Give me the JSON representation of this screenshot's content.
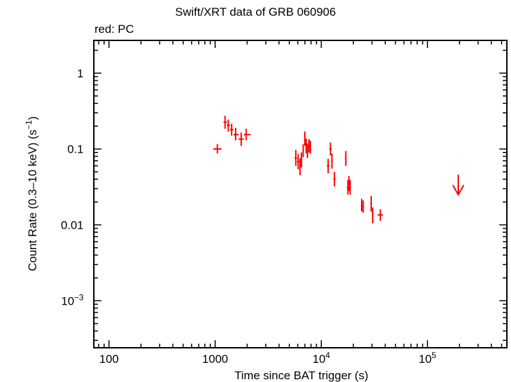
{
  "chart_data": {
    "type": "scatter",
    "title": "Swift/XRT data of GRB 060906",
    "subtitle": "red: PC",
    "xlabel": "Time since BAT trigger (s)",
    "ylabel": "Count Rate (0.3–10 keV) (s",
    "ylabel_sup": "−1",
    "ylabel_end": ")",
    "x_scale": "log",
    "y_scale": "log",
    "xlim": [
      72,
      560000
    ],
    "ylim": [
      0.00024,
      2.7
    ],
    "x_ticks": [
      {
        "value": 100,
        "base": "100",
        "sup": ""
      },
      {
        "value": 1000,
        "base": "1000",
        "sup": ""
      },
      {
        "value": 10000,
        "base": "10",
        "sup": "4"
      },
      {
        "value": 100000,
        "base": "10",
        "sup": "5"
      }
    ],
    "y_ticks": [
      {
        "value": 1,
        "base": "1",
        "sup": ""
      },
      {
        "value": 0.1,
        "base": "0.1",
        "sup": ""
      },
      {
        "value": 0.01,
        "base": "0.01",
        "sup": ""
      },
      {
        "value": 0.001,
        "base": "10",
        "sup": "−3"
      }
    ],
    "color": "#ff0000",
    "series": [
      {
        "points": [
          {
            "x": 1050,
            "y": 0.1,
            "xlo": 960,
            "xhi": 1150,
            "ylo": 0.087,
            "yhi": 0.116
          },
          {
            "x": 1240,
            "y": 0.225,
            "xlo": 1200,
            "xhi": 1290,
            "ylo": 0.185,
            "yhi": 0.275
          },
          {
            "x": 1330,
            "y": 0.205,
            "xlo": 1290,
            "xhi": 1380,
            "ylo": 0.17,
            "yhi": 0.245
          },
          {
            "x": 1430,
            "y": 0.18,
            "xlo": 1380,
            "xhi": 1490,
            "ylo": 0.15,
            "yhi": 0.215
          },
          {
            "x": 1560,
            "y": 0.155,
            "xlo": 1490,
            "xhi": 1660,
            "ylo": 0.13,
            "yhi": 0.19
          },
          {
            "x": 1760,
            "y": 0.135,
            "xlo": 1660,
            "xhi": 1860,
            "ylo": 0.11,
            "yhi": 0.165
          },
          {
            "x": 1960,
            "y": 0.155,
            "xlo": 1860,
            "xhi": 2160,
            "ylo": 0.13,
            "yhi": 0.185
          },
          {
            "x": 5750,
            "y": 0.076,
            "xlo": 5600,
            "xhi": 5900,
            "ylo": 0.06,
            "yhi": 0.097
          },
          {
            "x": 6050,
            "y": 0.068,
            "xlo": 5900,
            "xhi": 6200,
            "ylo": 0.054,
            "yhi": 0.086
          },
          {
            "x": 6300,
            "y": 0.058,
            "xlo": 6200,
            "xhi": 6400,
            "ylo": 0.045,
            "yhi": 0.075
          },
          {
            "x": 6500,
            "y": 0.072,
            "xlo": 6400,
            "xhi": 6600,
            "ylo": 0.057,
            "yhi": 0.09
          },
          {
            "x": 6750,
            "y": 0.095,
            "xlo": 6650,
            "xhi": 6850,
            "ylo": 0.078,
            "yhi": 0.116
          },
          {
            "x": 7000,
            "y": 0.135,
            "xlo": 6900,
            "xhi": 7100,
            "ylo": 0.11,
            "yhi": 0.17
          },
          {
            "x": 7200,
            "y": 0.11,
            "xlo": 7100,
            "xhi": 7300,
            "ylo": 0.088,
            "yhi": 0.137
          },
          {
            "x": 7400,
            "y": 0.095,
            "xlo": 7300,
            "xhi": 7500,
            "ylo": 0.076,
            "yhi": 0.118
          },
          {
            "x": 7650,
            "y": 0.11,
            "xlo": 7500,
            "xhi": 7800,
            "ylo": 0.09,
            "yhi": 0.135
          },
          {
            "x": 7900,
            "y": 0.105,
            "xlo": 7800,
            "xhi": 8000,
            "ylo": 0.087,
            "yhi": 0.128
          },
          {
            "x": 11600,
            "y": 0.06,
            "xlo": 11300,
            "xhi": 11900,
            "ylo": 0.048,
            "yhi": 0.074
          },
          {
            "x": 12200,
            "y": 0.1,
            "xlo": 11900,
            "xhi": 12500,
            "ylo": 0.082,
            "yhi": 0.122
          },
          {
            "x": 12600,
            "y": 0.07,
            "xlo": 12400,
            "xhi": 12800,
            "ylo": 0.055,
            "yhi": 0.087
          },
          {
            "x": 13300,
            "y": 0.04,
            "xlo": 13000,
            "xhi": 13600,
            "ylo": 0.032,
            "yhi": 0.05
          },
          {
            "x": 17000,
            "y": 0.075,
            "xlo": 16700,
            "xhi": 17300,
            "ylo": 0.06,
            "yhi": 0.094
          },
          {
            "x": 17800,
            "y": 0.031,
            "xlo": 17400,
            "xhi": 18200,
            "ylo": 0.025,
            "yhi": 0.039
          },
          {
            "x": 18200,
            "y": 0.035,
            "xlo": 17900,
            "xhi": 18500,
            "ylo": 0.028,
            "yhi": 0.044
          },
          {
            "x": 18700,
            "y": 0.031,
            "xlo": 18400,
            "xhi": 19000,
            "ylo": 0.025,
            "yhi": 0.039
          },
          {
            "x": 24000,
            "y": 0.018,
            "xlo": 23600,
            "xhi": 24400,
            "ylo": 0.015,
            "yhi": 0.022
          },
          {
            "x": 24800,
            "y": 0.0175,
            "xlo": 24400,
            "xhi": 25200,
            "ylo": 0.0145,
            "yhi": 0.021
          },
          {
            "x": 29500,
            "y": 0.019,
            "xlo": 29000,
            "xhi": 30000,
            "ylo": 0.015,
            "yhi": 0.024
          },
          {
            "x": 30500,
            "y": 0.0135,
            "xlo": 30000,
            "xhi": 31000,
            "ylo": 0.0105,
            "yhi": 0.017
          },
          {
            "x": 36000,
            "y": 0.0135,
            "xlo": 34000,
            "xhi": 38000,
            "ylo": 0.0113,
            "yhi": 0.016
          }
        ]
      }
    ],
    "upper_limits": [
      {
        "x": 195000,
        "y": 0.046,
        "y_arrow_tip": 0.025
      }
    ]
  }
}
